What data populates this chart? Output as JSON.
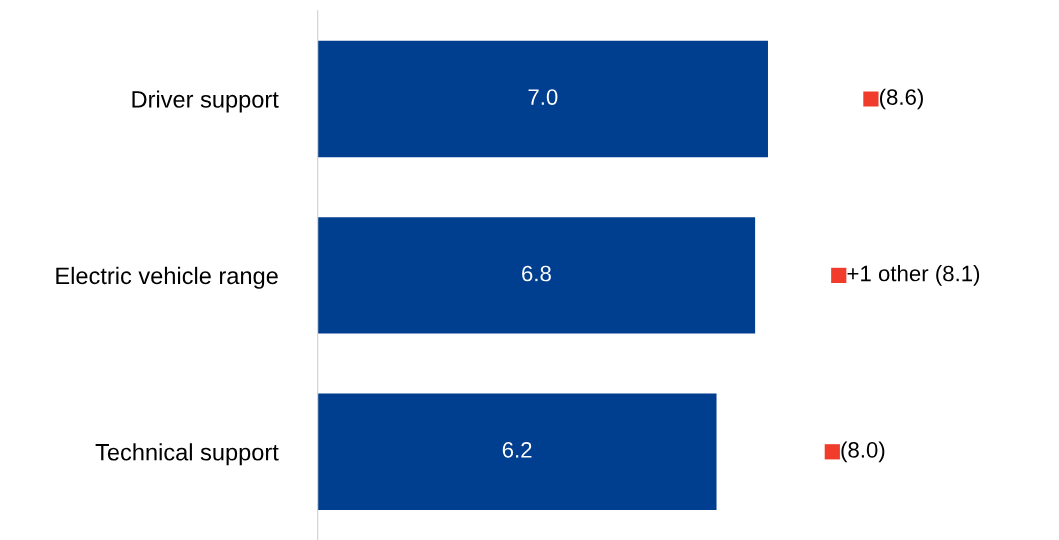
{
  "chart_data": {
    "type": "bar",
    "orientation": "horizontal",
    "categories": [
      "Driver support",
      "Electric vehicle range",
      "Technical support"
    ],
    "series": [
      {
        "color": "#003f8f",
        "values": [
          7.0,
          6.8,
          6.2
        ],
        "value_labels": [
          "7.0",
          "6.8",
          "6.2"
        ]
      },
      {
        "type": "scatter",
        "marker": "square",
        "color": "#f23c2b",
        "values": [
          8.6,
          8.1,
          8.0
        ],
        "value_labels": [
          "(8.6)",
          "+1 other (8.1)",
          "(8.0)"
        ]
      }
    ],
    "tick_labels": "y",
    "grid": false,
    "legend": false
  }
}
